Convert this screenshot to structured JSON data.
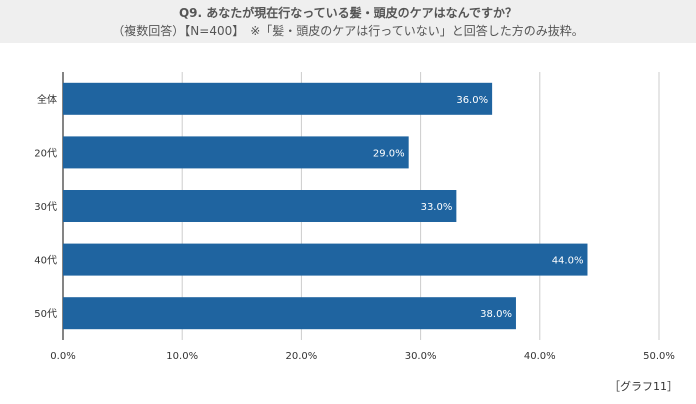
{
  "header": {
    "title": "Q9. あなたが現在行なっている髪・頭皮のケアはなんですか？",
    "subtitle": "（複数回答）【N=400】　※「髪・頭皮のケアは行っていない」と回答した方のみ抜粋。"
  },
  "chart_data": {
    "type": "bar",
    "orientation": "horizontal",
    "categories": [
      "全体",
      "20代",
      "30代",
      "40代",
      "50代"
    ],
    "values": [
      36.0,
      29.0,
      33.0,
      44.0,
      38.0
    ],
    "value_labels": [
      "36.0%",
      "29.0%",
      "33.0%",
      "44.0%",
      "38.0%"
    ],
    "xlim": [
      0,
      50
    ],
    "ticks": [
      "0.0%",
      "10.0%",
      "20.0%",
      "30.0%",
      "40.0%",
      "50.0%"
    ],
    "tick_values": [
      0,
      10,
      20,
      30,
      40,
      50
    ],
    "grid": true,
    "bar_color": "#1f64a0",
    "grid_color": "#cccccc"
  },
  "footnote": "［グラフ11］"
}
